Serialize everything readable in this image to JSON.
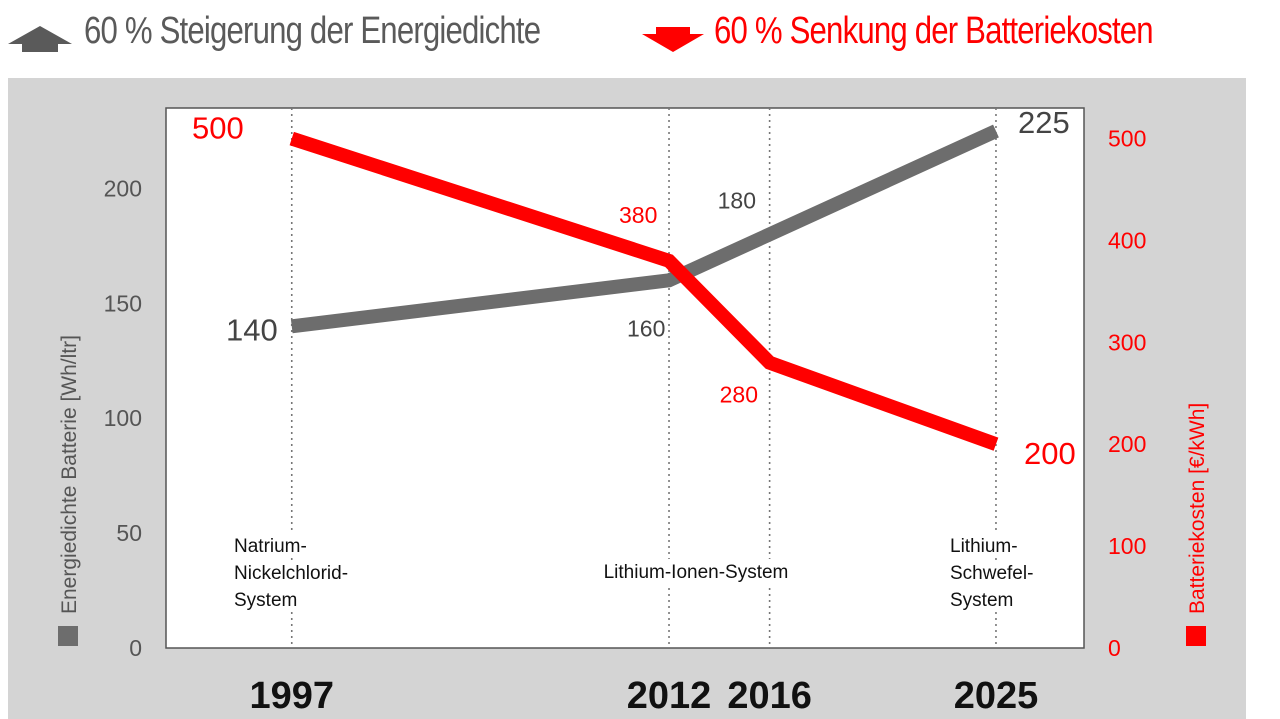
{
  "header": {
    "energy_headline": "60 % Steigerung der Energiedichte",
    "cost_headline": "60 % Senkung der Batteriekosten",
    "energy_arrow_icon": "arrow-up-icon",
    "cost_arrow_icon": "arrow-down-icon"
  },
  "colors": {
    "energy": "#6d6d6d",
    "cost": "#ff0000",
    "panel": "#d4d4d4",
    "plot": "#ffffff",
    "text_dark": "#3a3a3a"
  },
  "chart_data": {
    "type": "line",
    "x": [
      1997,
      2012,
      2016,
      2025
    ],
    "x_tick_labels": [
      "1997",
      "2012",
      "2016",
      "2025"
    ],
    "xlim": [
      1992,
      2028.5
    ],
    "series": [
      {
        "name": "Energiedichte Batterie",
        "axis": "left",
        "values": [
          140,
          160,
          180,
          225
        ],
        "value_labels": [
          "140",
          "160",
          "180",
          "225"
        ]
      },
      {
        "name": "Batteriekosten",
        "axis": "right",
        "values": [
          500,
          380,
          280,
          200
        ],
        "value_labels": [
          "500",
          "380",
          "280",
          "200"
        ]
      }
    ],
    "y_left": {
      "label": "Energiedichte Batterie  [Wh/ltr]",
      "ylim": [
        0,
        235
      ],
      "ticks": [
        0,
        50,
        100,
        150,
        200
      ],
      "tick_labels": [
        "0",
        "50",
        "100",
        "150",
        "200"
      ]
    },
    "y_right": {
      "label": "Batteriekosten  [€/kWh]",
      "ylim": [
        0,
        530
      ],
      "ticks": [
        0,
        100,
        200,
        300,
        400,
        500
      ],
      "tick_labels": [
        "0",
        "100",
        "200",
        "300",
        "400",
        "500"
      ]
    },
    "annotations": [
      "Natrium-\nNickelchlorid-\nSystem",
      "Lithium-Ionen-System",
      "Lithium-\nSchwefel-\nSystem"
    ],
    "grid": "dotted vertical lines at each year"
  }
}
